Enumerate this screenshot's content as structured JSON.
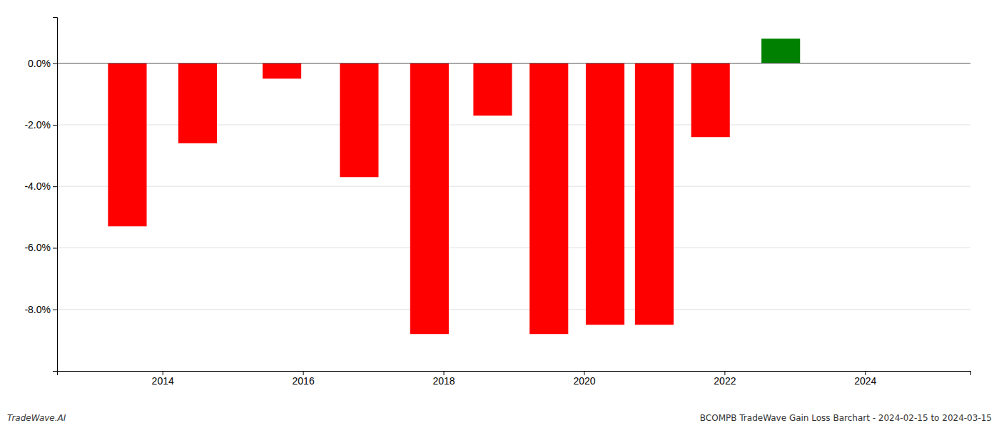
{
  "chart_data": {
    "type": "bar",
    "x": [
      2013.5,
      2014.5,
      2015.7,
      2016.8,
      2017.8,
      2018.7,
      2019.5,
      2020.3,
      2021.0,
      2021.8,
      2022.8
    ],
    "values": [
      -5.3,
      -2.6,
      -0.5,
      -3.7,
      -8.8,
      -1.7,
      -8.8,
      -8.5,
      -8.5,
      -2.4,
      0.8
    ],
    "colors": [
      "#ff0000",
      "#ff0000",
      "#ff0000",
      "#ff0000",
      "#ff0000",
      "#ff0000",
      "#ff0000",
      "#ff0000",
      "#ff0000",
      "#ff0000",
      "#008000"
    ],
    "xlim": [
      2012.5,
      2025.5
    ],
    "xticks": [
      2014,
      2016,
      2018,
      2020,
      2022,
      2024
    ],
    "ylim": [
      -10.0,
      1.5
    ],
    "yticks": [
      {
        "value": 0.0,
        "label": "0.0%"
      },
      {
        "value": -2.0,
        "label": "-2.0%"
      },
      {
        "value": -4.0,
        "label": "-4.0%"
      },
      {
        "value": -6.0,
        "label": "-6.0%"
      },
      {
        "value": -8.0,
        "label": "-8.0%"
      }
    ],
    "grid": true,
    "annotations": [
      "TradeWave.AI",
      "BCOMPB TradeWave Gain Loss Barchart - 2024-02-15 to 2024-03-15"
    ]
  }
}
